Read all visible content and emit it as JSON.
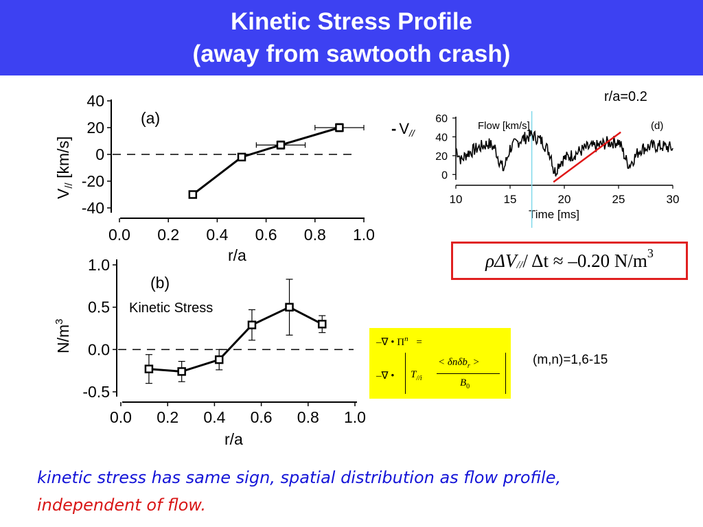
{
  "slide": {
    "title_line1": "Kinetic Stress Profile",
    "title_line2": "(away from sawtooth crash)",
    "conclusion_line1": "kinetic stress has same sign, spatial distribution as flow profile,",
    "conclusion_line2": "independent of flow."
  },
  "annotations": {
    "radius_label": "r/a=0.2",
    "mode_numbers": "(m,n)=1,6-15",
    "minus_v_prefix": "-",
    "minus_v_symbol": "V",
    "minus_v_sub": "//",
    "flow_rate_equation": {
      "lhs": "ρΔV",
      "sub": "//",
      "mid": " / Δt ≈ –0.20 N/m",
      "sup": "3"
    },
    "stress_equation": {
      "line1": "–∇ • Π",
      "line1_sup": "n",
      "line1_eq": "=",
      "line2_prefix": "–∇ •",
      "numerator": "< δnδb",
      "numerator_sub": "r",
      "numerator_end": " >",
      "factor": "T",
      "factor_sub": "//i",
      "denominator": "B",
      "denominator_sub": "0"
    }
  },
  "chart_data": [
    {
      "type": "line",
      "panel": "(a)",
      "xlabel": "r/a",
      "ylabel": "V// [km/s]",
      "xlim": [
        0.0,
        1.0
      ],
      "ylim": [
        -40,
        40
      ],
      "xticks": [
        "0.0",
        "0.2",
        "0.4",
        "0.6",
        "0.8",
        "1.0"
      ],
      "yticks": [
        "40",
        "20",
        "0",
        "-20",
        "-40"
      ],
      "x": [
        0.3,
        0.5,
        0.66,
        0.9
      ],
      "y": [
        -30,
        -2,
        7,
        20
      ],
      "xerr": [
        0,
        0,
        0.1,
        0.1
      ],
      "yerr": [
        0,
        0,
        3,
        3
      ],
      "zero_line": "dashed"
    },
    {
      "type": "line",
      "panel": "(b)",
      "annotation": "Kinetic Stress",
      "xlabel": "r/a",
      "ylabel": "N/m3",
      "xlim": [
        0.0,
        1.0
      ],
      "ylim": [
        -0.5,
        1.0
      ],
      "xticks": [
        "0.0",
        "0.2",
        "0.4",
        "0.6",
        "0.8",
        "1.0"
      ],
      "yticks": [
        "1.0",
        "0.5",
        "0.0",
        "-0.5"
      ],
      "x": [
        0.12,
        0.26,
        0.42,
        0.56,
        0.72,
        0.86
      ],
      "y": [
        -0.23,
        -0.26,
        -0.12,
        0.29,
        0.5,
        0.3
      ],
      "yerr": [
        0.17,
        0.12,
        0.12,
        0.18,
        0.33,
        0.1
      ],
      "zero_line": "dashed"
    },
    {
      "type": "line",
      "panel": "(d)",
      "annotation": "Flow [km/s]",
      "xlabel": "Time [ms]",
      "xlim": [
        10,
        30
      ],
      "ylim": [
        -10,
        60
      ],
      "xticks": [
        "10",
        "15",
        "20",
        "25",
        "30"
      ],
      "yticks": [
        "60",
        "40",
        "20",
        "0"
      ],
      "marker_time": 17,
      "x": [
        10,
        10.5,
        11,
        12,
        13,
        13.6,
        14,
        14.4,
        15,
        16,
        17,
        18,
        18.8,
        19,
        19.2,
        19.5,
        20,
        21,
        22,
        23,
        24,
        25,
        25.3,
        25.7,
        26,
        27,
        28,
        29,
        30
      ],
      "y": [
        28,
        15,
        22,
        28,
        33,
        28,
        15,
        5,
        28,
        37,
        42,
        35,
        20,
        5,
        3,
        12,
        17,
        22,
        28,
        30,
        34,
        35,
        28,
        15,
        10,
        27,
        30,
        30,
        28
      ],
      "fit_line": {
        "x": [
          19,
          25.2
        ],
        "y": [
          -8,
          45
        ]
      }
    }
  ]
}
